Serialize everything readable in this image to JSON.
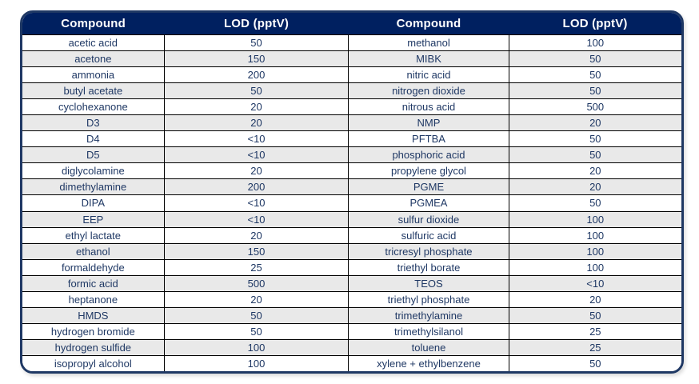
{
  "chart_data": {
    "type": "table",
    "columns": [
      "Compound",
      "LOD (pptV)",
      "Compound",
      "LOD (pptV)"
    ],
    "rows": [
      [
        "acetic acid",
        "50",
        "methanol",
        "100"
      ],
      [
        "acetone",
        "150",
        "MIBK",
        "50"
      ],
      [
        "ammonia",
        "200",
        "nitric acid",
        "50"
      ],
      [
        "butyl acetate",
        "50",
        "nitrogen dioxide",
        "50"
      ],
      [
        "cyclohexanone",
        "20",
        "nitrous acid",
        "500"
      ],
      [
        "D3",
        "20",
        "NMP",
        "20"
      ],
      [
        "D4",
        "<10",
        "PFTBA",
        "50"
      ],
      [
        "D5",
        "<10",
        "phosphoric acid",
        "50"
      ],
      [
        "diglycolamine",
        "20",
        "propylene glycol",
        "20"
      ],
      [
        "dimethylamine",
        "200",
        "PGME",
        "20"
      ],
      [
        "DIPA",
        "<10",
        "PGMEA",
        "50"
      ],
      [
        "EEP",
        "<10",
        "sulfur dioxide",
        "100"
      ],
      [
        "ethyl lactate",
        "20",
        "sulfuric acid",
        "100"
      ],
      [
        "ethanol",
        "150",
        "tricresyl phosphate",
        "100"
      ],
      [
        "formaldehyde",
        "25",
        "triethyl borate",
        "100"
      ],
      [
        "formic acid",
        "500",
        "TEOS",
        "<10"
      ],
      [
        "heptanone",
        "20",
        "triethyl phosphate",
        "20"
      ],
      [
        "HMDS",
        "50",
        "trimethylamine",
        "50"
      ],
      [
        "hydrogen bromide",
        "50",
        "trimethylsilanol",
        "25"
      ],
      [
        "hydrogen sulfide",
        "100",
        "toluene",
        "25"
      ],
      [
        "isopropyl alcohol",
        "100",
        "xylene + ethylbenzene",
        "50"
      ]
    ],
    "layout_hints": {
      "striped_rows": true,
      "stripe_on": "even",
      "text_align": "center"
    }
  },
  "colors": {
    "header_bg": "#002060",
    "header_text": "#FFFFFF",
    "body_text": "#1F3864",
    "stripe_row_bg": "#E9E9E9",
    "white_row_bg": "#FFFFFF",
    "outer_border": "#1F3864",
    "inner_border": "#000000"
  }
}
